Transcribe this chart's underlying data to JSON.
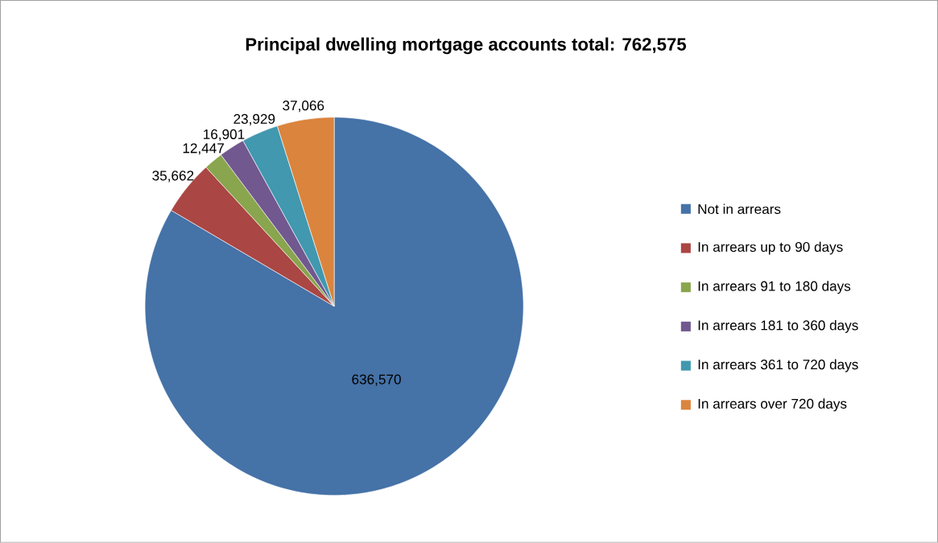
{
  "chart_data": {
    "type": "pie",
    "title": "Principal dwelling mortgage accounts total: 762,575",
    "categories": [
      "Not in arrears",
      "In arrears up to 90 days",
      "In arrears 91 to 180 days",
      "In arrears 181 to 360 days",
      "In arrears 361 to 720 days",
      "In arrears over 720 days"
    ],
    "values": [
      636570,
      35662,
      12447,
      16901,
      23929,
      37066
    ],
    "colors": [
      "#4572a7",
      "#aa4643",
      "#89a54e",
      "#71588f",
      "#4198af",
      "#db843d"
    ],
    "value_labels": [
      "636,570",
      "35,662",
      "12,447",
      "16,901",
      "23,929",
      "37,066"
    ],
    "legend": "right"
  }
}
